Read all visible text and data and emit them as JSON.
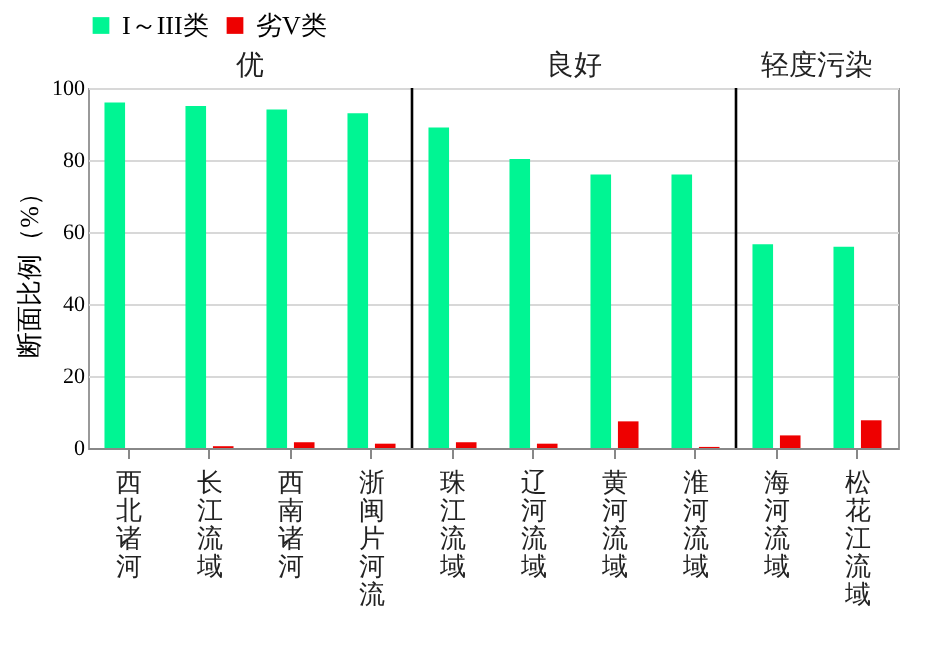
{
  "chart_data": {
    "type": "bar",
    "ylabel": "断面比例（%）",
    "categories": [
      "西北诸河",
      "长江流域",
      "西南诸河",
      "浙闽片河流",
      "珠江流域",
      "辽河流域",
      "黄河流域",
      "淮河流域",
      "海河流域",
      "松花江流域"
    ],
    "series": [
      {
        "name": "I～III类",
        "color": "#00f593",
        "values": [
          96,
          95,
          94,
          93,
          89,
          80.3,
          76,
          76,
          56.6,
          55.9
        ]
      },
      {
        "name": "劣V类",
        "color": "#ee0000",
        "values": [
          0,
          0.5,
          1.6,
          1.2,
          1.6,
          1.2,
          7.4,
          0.3,
          3.5,
          7.7
        ]
      }
    ],
    "ylim": [
      0,
      100
    ],
    "yticks": [
      0,
      20,
      40,
      60,
      80,
      100
    ],
    "grid": "y",
    "legend": "top",
    "annotations": [
      "优",
      "良好",
      "轻度污染"
    ]
  }
}
